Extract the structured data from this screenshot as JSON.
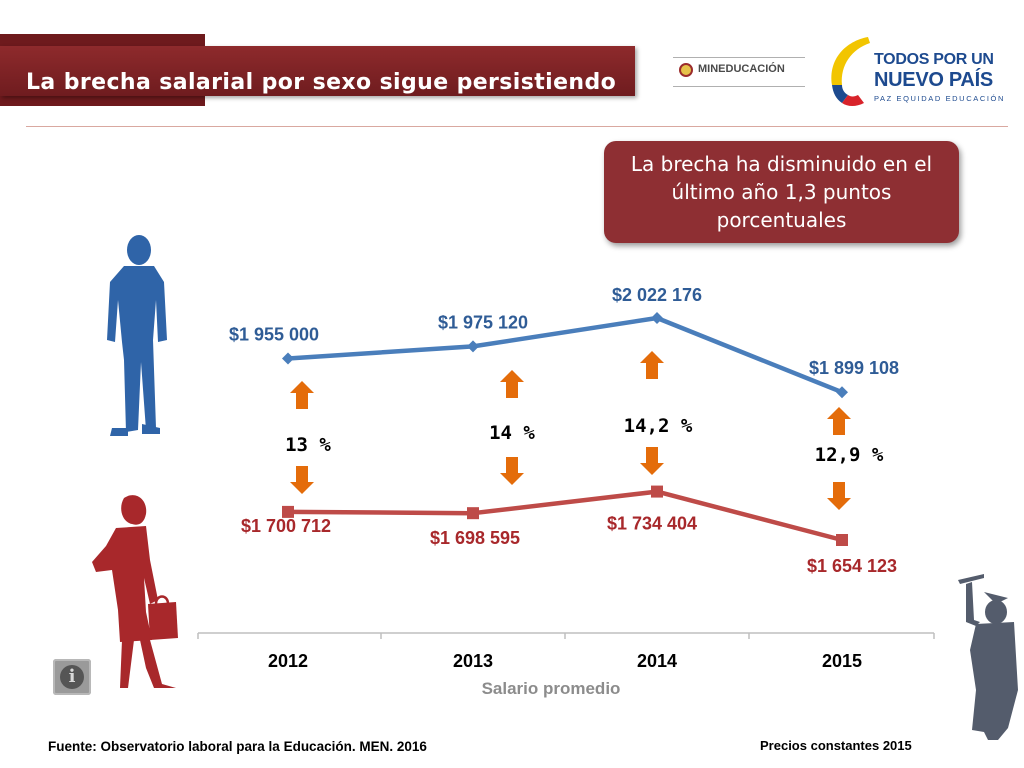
{
  "header": {
    "title": "La brecha salarial por sexo sigue persistiendo",
    "ministry_logo": "MINEDUCACIÓN",
    "gov_logo_line1": "TODOS POR UN",
    "gov_logo_line2": "NUEVO PAÍS",
    "gov_logo_tagline": "PAZ  EQUIDAD  EDUCACIÓN"
  },
  "callout": "La brecha ha disminuido en el último año 1,3 puntos porcentuales",
  "chart_data": {
    "type": "line",
    "xlabel": "Salario promedio",
    "categories": [
      "2012",
      "2013",
      "2014",
      "2015"
    ],
    "series": [
      {
        "name": "Hombres",
        "color": "#4a7ebb",
        "values": [
          1955000,
          1975120,
          2022176,
          1899108
        ],
        "labels": [
          "$1 955 000",
          "$1 975 120",
          "$2 022 176",
          "$1 899 108"
        ]
      },
      {
        "name": "Mujeres",
        "color": "#be4b48",
        "values": [
          1700712,
          1698595,
          1734404,
          1654123
        ],
        "labels": [
          "$1 700 712",
          "$1 698 595",
          "$1 734 404",
          "$1 654 123"
        ]
      }
    ],
    "gaps": [
      "13 %",
      "14 %",
      "14,2 %",
      "12,9 %"
    ],
    "ylim": [
      1400000,
      2100000
    ]
  },
  "footer": {
    "source": "Fuente: Observatorio laboral para la Educación. MEN. 2016",
    "note": "Precios constantes  2015"
  },
  "colors": {
    "title_bar": "#7f2427",
    "men": "#4a7ebb",
    "women": "#be4b48",
    "arrow": "#e46c0a",
    "graduate": "#545c6c"
  },
  "icons": [
    "man-silhouette-icon",
    "woman-silhouette-icon",
    "graduate-silhouette-icon",
    "info-icon",
    "arrow-up-icon",
    "arrow-down-icon"
  ]
}
